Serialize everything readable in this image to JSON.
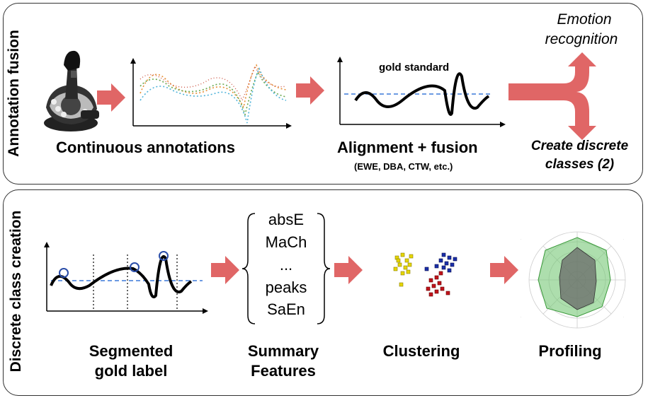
{
  "top_panel": {
    "side_label": "Annotation fusion",
    "continuous_label": "Continuous annotations",
    "alignment_label": "Alignment + fusion",
    "alignment_methods": "(EWE, DBA, CTW, etc.)",
    "gold_standard_label": "gold standard",
    "emotion_line1": "Emotion",
    "emotion_line2": "recognition",
    "create_line1": "Create discrete",
    "create_line2": "classes (2)"
  },
  "bottom_panel": {
    "side_label": "Discrete class creation",
    "segmented_line1": "Segmented",
    "segmented_line2": "gold label",
    "summary_line1": "Summary",
    "summary_line2": "Features",
    "features": [
      "absE",
      "MaCh",
      "...",
      "peaks",
      "SaEn"
    ],
    "clustering_label": "Clustering",
    "profiling_label": "Profiling"
  },
  "colors": {
    "arrow": "#e06666",
    "line": "#000000",
    "dashed": "#3c78d8",
    "cluster_yellow": "#e6d600",
    "cluster_blue": "#1a2fa8",
    "cluster_red": "#c0141c",
    "radar_green": "#76c876",
    "radar_dark": "#6a6a6a"
  },
  "icons": [
    "joystick-icon",
    "radar-chart-icon",
    "scatter-clusters-icon"
  ]
}
